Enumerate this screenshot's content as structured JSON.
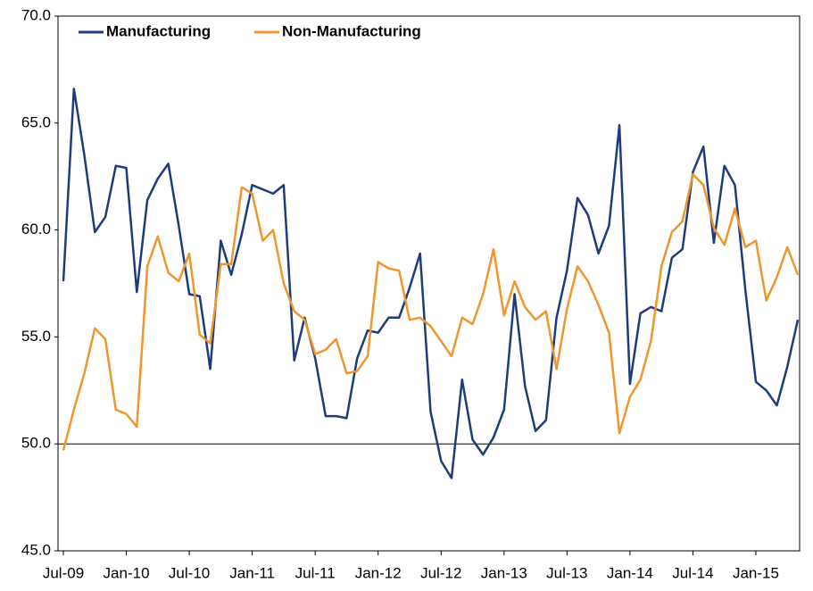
{
  "chart_data": {
    "type": "line",
    "categories": [
      "Jul-09",
      null,
      null,
      null,
      null,
      null,
      "Jan-10",
      null,
      null,
      null,
      null,
      null,
      "Jul-10",
      null,
      null,
      null,
      null,
      null,
      "Jan-11",
      null,
      null,
      null,
      null,
      null,
      "Jul-11",
      null,
      null,
      null,
      null,
      null,
      "Jan-12",
      null,
      null,
      null,
      null,
      null,
      "Jul-12",
      null,
      null,
      null,
      null,
      null,
      "Jan-13",
      null,
      null,
      null,
      null,
      null,
      "Jul-13",
      null,
      null,
      null,
      null,
      null,
      "Jan-14",
      null,
      null,
      null,
      null,
      null,
      "Jul-14",
      null,
      null,
      null,
      null,
      null,
      "Jan-15",
      null,
      null,
      null,
      null
    ],
    "series": [
      {
        "name": "Manufacturing",
        "color": "#1f3b7a",
        "values": [
          57.6,
          66.6,
          63.5,
          59.9,
          60.6,
          63.0,
          62.9,
          57.1,
          61.4,
          62.4,
          63.1,
          60.2,
          57.0,
          56.9,
          53.5,
          59.5,
          57.9,
          59.8,
          62.1,
          61.9,
          61.7,
          62.1,
          53.9,
          55.9,
          54.0,
          51.3,
          51.3,
          51.2,
          54.0,
          55.3,
          55.2,
          55.9,
          55.9,
          57.3,
          58.9,
          51.5,
          49.2,
          48.4,
          53.0,
          50.2,
          49.5,
          50.3,
          51.6,
          57.0,
          52.7,
          50.6,
          51.1,
          55.9,
          58.1,
          61.5,
          60.7,
          58.9,
          60.2,
          64.9,
          52.8,
          56.1,
          56.4,
          56.2,
          58.7,
          59.1,
          62.7,
          63.9,
          59.4,
          63.0,
          62.1,
          57.2,
          52.9,
          52.5,
          51.8,
          53.6,
          55.8
        ]
      },
      {
        "name": "Non-Manufacturing",
        "color": "#f0962e",
        "values": [
          49.7,
          51.6,
          53.3,
          55.4,
          54.9,
          51.6,
          51.4,
          50.8,
          58.3,
          59.7,
          58.0,
          57.6,
          58.9,
          55.1,
          54.7,
          58.4,
          58.4,
          62.0,
          61.7,
          59.5,
          60.0,
          57.5,
          56.2,
          55.8,
          54.2,
          54.4,
          54.9,
          53.3,
          53.4,
          54.1,
          58.5,
          58.2,
          58.1,
          55.8,
          55.9,
          55.5,
          54.8,
          54.1,
          55.9,
          55.6,
          57.0,
          59.1,
          56.0,
          57.6,
          56.4,
          55.8,
          56.2,
          53.5,
          56.3,
          58.3,
          57.6,
          56.5,
          55.2,
          50.5,
          52.2,
          53.0,
          54.8,
          58.3,
          59.9,
          60.4,
          62.6,
          62.1,
          60.1,
          59.3,
          61.0,
          59.2,
          59.5,
          56.7,
          57.8,
          59.2,
          57.9
        ]
      }
    ],
    "ylim": [
      45,
      70
    ],
    "yticks": [
      {
        "value": 45,
        "label": "45.0"
      },
      {
        "value": 50,
        "label": "50.0"
      },
      {
        "value": 55,
        "label": "55.0"
      },
      {
        "value": 60,
        "label": "60.0"
      },
      {
        "value": 65,
        "label": "65.0"
      },
      {
        "value": 70,
        "label": "70.0"
      }
    ],
    "reference_line": 50,
    "grid": false,
    "legend": "top-left"
  }
}
